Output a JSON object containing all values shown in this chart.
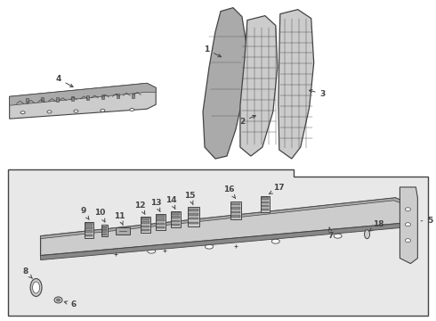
{
  "bg_color": "#ffffff",
  "fig_width": 4.9,
  "fig_height": 3.6,
  "dpi": 100,
  "lc": "#444444",
  "fc_light": "#cccccc",
  "fc_mid": "#aaaaaa",
  "fc_dark": "#888888",
  "box_bg": "#e8e8e8",
  "fs": 6.5
}
